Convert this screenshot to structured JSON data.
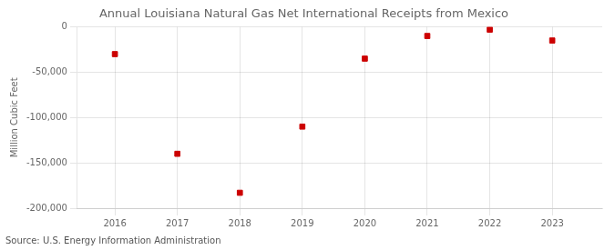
{
  "chart_data": {
    "type": "scatter",
    "title": "Annual Louisiana Natural Gas Net International Receipts from Mexico",
    "ylabel": "Million Cubic Feet",
    "annotation": "Source: U.S. Energy Information Administration",
    "x": [
      2016,
      2017,
      2018,
      2019,
      2020,
      2021,
      2022,
      2023
    ],
    "values": [
      -30000,
      -140000,
      -183000,
      -110000,
      -35000,
      -10000,
      -3000,
      -15000
    ],
    "color": "#cc0000",
    "marker": "square",
    "xlim": [
      2015.4,
      2023.8
    ],
    "xticks": [
      2016,
      2017,
      2018,
      2019,
      2020,
      2021,
      2022,
      2023
    ],
    "ylim": [
      -200000,
      0
    ],
    "yticks": [
      0,
      {
        "value": -50000,
        "label": "-50,000"
      },
      {
        "value": -100000,
        "label": "-100,000"
      },
      {
        "value": -150000,
        "label": "-150,000"
      },
      {
        "value": -200000,
        "label": "-200,000"
      }
    ],
    "grid": true
  }
}
